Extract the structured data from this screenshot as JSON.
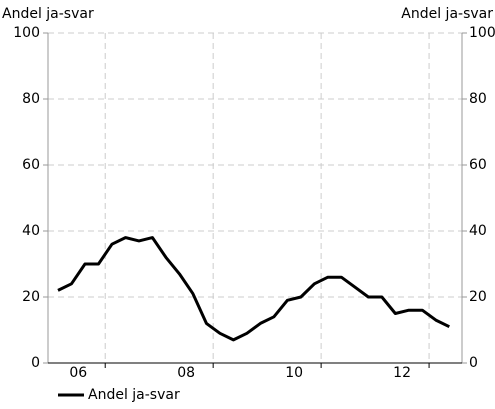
{
  "chart_data": {
    "type": "line",
    "ylabel": "Andel ja-svar",
    "y2label": "Andel ja-svar",
    "x": [
      2006.125,
      2006.375,
      2006.625,
      2006.875,
      2007.125,
      2007.375,
      2007.625,
      2007.875,
      2008.125,
      2008.375,
      2008.625,
      2008.875,
      2009.125,
      2009.375,
      2009.625,
      2009.875,
      2010.125,
      2010.375,
      2010.625,
      2010.875,
      2011.125,
      2011.375,
      2011.625,
      2011.875,
      2012.125,
      2012.375,
      2012.625,
      2012.875,
      2013.125,
      2013.375
    ],
    "series": [
      {
        "name": "Andel ja-svar",
        "color": "#000000",
        "values": [
          22,
          24,
          30,
          30,
          36,
          38,
          37,
          38,
          32,
          27,
          21,
          12,
          9,
          7,
          9,
          12,
          14,
          19,
          20,
          24,
          26,
          26,
          23,
          20,
          20,
          15,
          16,
          16,
          13,
          11
        ]
      }
    ],
    "xlim": [
      2005.94,
      2013.61
    ],
    "xticks": [
      {
        "value": 2006.5,
        "label": "06"
      },
      {
        "value": 2008.5,
        "label": "08"
      },
      {
        "value": 2010.5,
        "label": "10"
      },
      {
        "value": 2012.5,
        "label": "12"
      }
    ],
    "xgrid": [
      2007,
      2009,
      2011,
      2013
    ],
    "ylim": [
      0,
      100
    ],
    "yticks": [
      0,
      20,
      40,
      60,
      80,
      100
    ],
    "y2lim": [
      0,
      100
    ],
    "y2ticks": [
      0,
      20,
      40,
      60,
      80,
      100
    ],
    "grid": true
  }
}
